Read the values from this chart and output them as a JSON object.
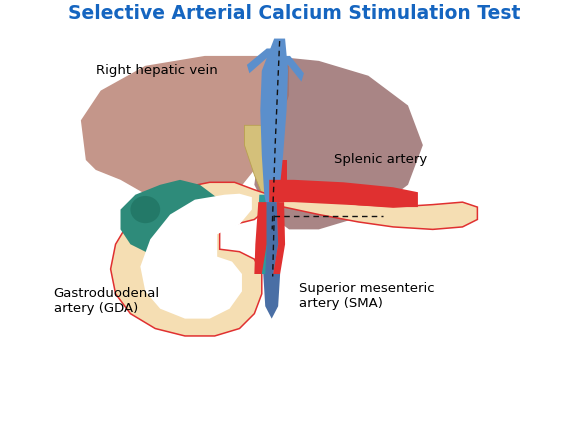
{
  "title": "Selective Arterial Calcium Stimulation Test",
  "title_color": "#1565C0",
  "title_fontsize": 13.5,
  "background_color": "#ffffff",
  "labels": {
    "right_hepatic_vein": "Right hepatic vein",
    "splenic_artery": "Splenic artery",
    "gastroduodenal": "Gastroduodenal\nartery (GDA)",
    "sma": "Superior mesenteric\nartery (SMA)"
  },
  "colors": {
    "liver_light": "#c4968a",
    "liver_dark": "#9a7070",
    "gallbladder": "#2e8b7a",
    "gallbladder_dark": "#1a6b5a",
    "pancreas": "#f5deb3",
    "pancreas_border": "#e03030",
    "bile_duct_yellow": "#d4c07a",
    "vessel_blue": "#5b8fcc",
    "vessel_teal": "#2e9b9b",
    "splenic_red": "#e03030",
    "sma_blue": "#4a6fa5",
    "dashed_line": "#111111",
    "white": "#ffffff"
  }
}
